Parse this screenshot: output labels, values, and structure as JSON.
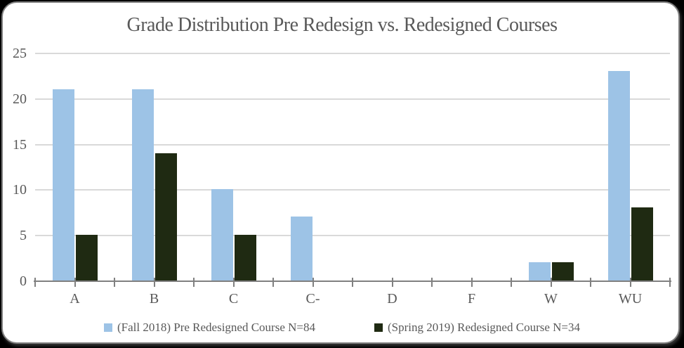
{
  "colors": {
    "background": "#000000",
    "card_background": "#ffffff",
    "card_border": "#7f7f7f",
    "title_text": "#595959",
    "axis_text": "#595959",
    "gridline": "#d9d9d9",
    "axis_line": "#808080",
    "series_fall2018": "#9dc3e6",
    "series_spring2019": "#1f2a12"
  },
  "chart_data": {
    "type": "bar",
    "title": "Grade Distribution Pre Redesign vs. Redesigned Courses",
    "xlabel": "",
    "ylabel": "",
    "categories": [
      "A",
      "B",
      "C",
      "C-",
      "D",
      "F",
      "W",
      "WU"
    ],
    "series": [
      {
        "name": "(Fall 2018) Pre Redesigned Course N=84",
        "color": "#9dc3e6",
        "values": [
          21,
          21,
          10,
          7,
          0,
          0,
          2,
          23
        ]
      },
      {
        "name": "(Spring 2019) Redesigned Course N=34",
        "color": "#1f2a12",
        "values": [
          5,
          14,
          5,
          0,
          0,
          0,
          2,
          8
        ]
      }
    ],
    "ylim": [
      0,
      25
    ],
    "yticks": [
      0,
      5,
      10,
      15,
      20,
      25
    ],
    "grid": true,
    "legend_position": "bottom"
  }
}
